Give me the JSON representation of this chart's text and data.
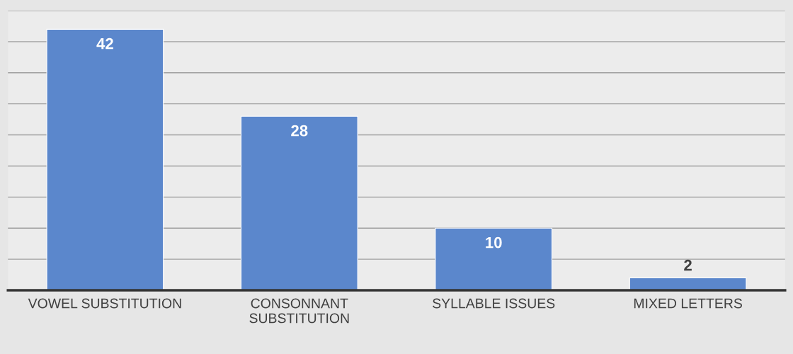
{
  "chart_data": {
    "type": "bar",
    "categories": [
      "VOWEL SUBSTITUTION",
      "CONSONNANT\nSUBSTITUTION",
      "SYLLABLE ISSUES",
      "MIXED LETTERS"
    ],
    "values": [
      42,
      28,
      10,
      2
    ],
    "color": "#5b87cc",
    "ylim": [
      0,
      45
    ],
    "yticks": [
      {
        "value": 0,
        "label": null
      },
      {
        "value": 5,
        "label": null
      },
      {
        "value": 10,
        "label": null
      },
      {
        "value": 15,
        "label": null
      },
      {
        "value": 20,
        "label": null
      },
      {
        "value": 25,
        "label": null
      },
      {
        "value": 30,
        "label": null
      },
      {
        "value": 35,
        "label": null
      },
      {
        "value": 40,
        "label": null
      },
      {
        "value": 45,
        "label": null
      }
    ],
    "tick_labels": "x",
    "grid": "y",
    "data_labels": true
  }
}
